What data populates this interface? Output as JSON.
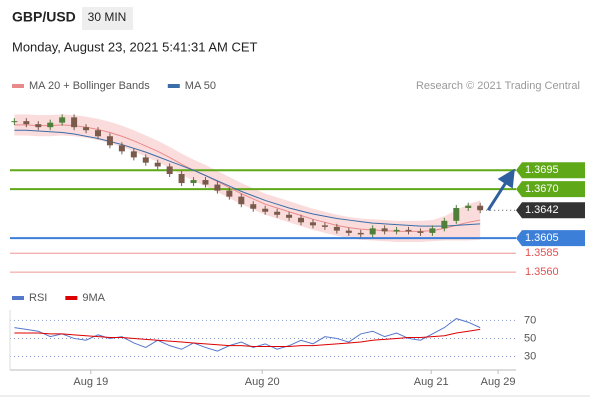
{
  "header": {
    "pair": "GBP/USD",
    "timeframe": "30 MIN",
    "datetime": "Monday, August 23, 2021 5:41:31 AM CET"
  },
  "source": "Research © 2021 Trading Central",
  "chart_data": [
    {
      "type": "candlestick",
      "values": [
        1.376,
        1.3756,
        1.3752,
        1.3758,
        1.3765,
        1.3752,
        1.3748,
        1.374,
        1.3728,
        1.372,
        1.3712,
        1.3705,
        1.37,
        1.369,
        1.3678,
        1.3682,
        1.3676,
        1.3668,
        1.366,
        1.365,
        1.3644,
        1.364,
        1.3636,
        1.3632,
        1.3626,
        1.3622,
        1.362,
        1.3615,
        1.3612,
        1.361,
        1.3618,
        1.3614,
        1.3616,
        1.3614,
        1.3612,
        1.3618,
        1.3628,
        1.3645,
        1.3648,
        1.3642
      ],
      "up_color": "#4f7f3a",
      "down_color": "#7a5a4a",
      "series": [
        {
          "name": "MA 20 + Bollinger Bands",
          "color": "#e88a8a",
          "values": [
            1.3755,
            1.3755,
            1.3754,
            1.3754,
            1.3755,
            1.3754,
            1.3752,
            1.3749,
            1.3745,
            1.374,
            1.3734,
            1.3727,
            1.372,
            1.3712,
            1.3703,
            1.3695,
            1.3688,
            1.368,
            1.3672,
            1.3664,
            1.3657,
            1.365,
            1.3645,
            1.364,
            1.3635,
            1.363,
            1.3626,
            1.3622,
            1.3619,
            1.3617,
            1.3616,
            1.3615,
            1.3614,
            1.3614,
            1.3614,
            1.3615,
            1.3618,
            1.3622,
            1.3626,
            1.3629
          ]
        },
        {
          "name": "MA 50",
          "color": "#3a6ea8",
          "values": [
            1.3748,
            1.3748,
            1.3747,
            1.3746,
            1.3745,
            1.3743,
            1.374,
            1.3737,
            1.3733,
            1.3729,
            1.3724,
            1.3719,
            1.3713,
            1.3707,
            1.3701,
            1.3695,
            1.3688,
            1.3681,
            1.3674,
            1.3667,
            1.3661,
            1.3655,
            1.365,
            1.3645,
            1.3641,
            1.3637,
            1.3634,
            1.3631,
            1.3629,
            1.3627,
            1.3625,
            1.3624,
            1.3623,
            1.3622,
            1.3621,
            1.3621,
            1.3621,
            1.3622,
            1.3623,
            1.3624
          ]
        }
      ],
      "band": {
        "color": "#fbdcdc",
        "upper": [
          1.3769,
          1.3769,
          1.3768,
          1.3768,
          1.3769,
          1.3768,
          1.3766,
          1.3763,
          1.3759,
          1.3754,
          1.3748,
          1.3741,
          1.3734,
          1.3726,
          1.3717,
          1.3709,
          1.3702,
          1.3694,
          1.3686,
          1.3678,
          1.3671,
          1.3664,
          1.3659,
          1.3654,
          1.3649,
          1.3644,
          1.364,
          1.3636,
          1.3633,
          1.3631,
          1.363,
          1.3629,
          1.3628,
          1.3628,
          1.3628,
          1.3629,
          1.3634,
          1.3642,
          1.365,
          1.3655
        ],
        "lower": [
          1.3741,
          1.3741,
          1.374,
          1.374,
          1.3741,
          1.374,
          1.3738,
          1.3735,
          1.3731,
          1.3726,
          1.372,
          1.3713,
          1.3706,
          1.3698,
          1.3689,
          1.3681,
          1.3674,
          1.3666,
          1.3658,
          1.365,
          1.3643,
          1.3636,
          1.3631,
          1.3626,
          1.3621,
          1.3616,
          1.3612,
          1.3608,
          1.3605,
          1.3603,
          1.3602,
          1.3601,
          1.36,
          1.36,
          1.36,
          1.3601,
          1.3602,
          1.3602,
          1.3602,
          1.3603
        ]
      },
      "levels": [
        {
          "value": 1.3695,
          "label": "1.3695",
          "color": "#5fa818",
          "boxed": true
        },
        {
          "value": 1.367,
          "label": "1.3670",
          "color": "#5fa818",
          "boxed": true
        },
        {
          "value": 1.3605,
          "label": "1.3605",
          "color": "#3b7fd9",
          "boxed": true
        },
        {
          "value": 1.3585,
          "label": "1.3585",
          "color": "#e25050",
          "boxed": false
        },
        {
          "value": 1.356,
          "label": "1.3560",
          "color": "#e25050",
          "boxed": false
        }
      ],
      "last": {
        "value": 1.3642,
        "color": "#333333"
      },
      "xlim": [
        -0.2,
        42
      ],
      "ylim": [
        1.3543,
        1.3788
      ]
    },
    {
      "type": "line",
      "series": [
        {
          "name": "RSI",
          "color": "#5577cc",
          "values": [
            62,
            60,
            58,
            52,
            55,
            50,
            48,
            54,
            50,
            52,
            45,
            40,
            48,
            42,
            38,
            45,
            40,
            36,
            42,
            46,
            40,
            44,
            38,
            42,
            48,
            44,
            52,
            50,
            46,
            55,
            58,
            52,
            56,
            50,
            48,
            55,
            62,
            72,
            68,
            62
          ]
        },
        {
          "name": "9MA",
          "color": "#dd0000",
          "values": [
            56,
            56,
            56,
            55,
            55,
            54,
            53,
            52,
            51,
            51,
            50,
            49,
            48,
            47,
            46,
            45,
            44,
            43,
            42,
            42,
            41,
            41,
            41,
            41,
            42,
            42,
            43,
            44,
            45,
            46,
            48,
            49,
            50,
            51,
            51,
            52,
            53,
            56,
            58,
            60
          ]
        }
      ],
      "xlim": [
        -0.2,
        42
      ],
      "xticks": [
        {
          "value": 6.4,
          "label": "Aug 19"
        },
        {
          "value": 20.75,
          "label": "Aug 20"
        },
        {
          "value": 34.9,
          "label": "Aug 21"
        },
        {
          "value": 40.5,
          "label": "Aug 29"
        }
      ],
      "ylim": [
        15,
        76
      ],
      "yticks": [
        30,
        50,
        70
      ]
    }
  ]
}
